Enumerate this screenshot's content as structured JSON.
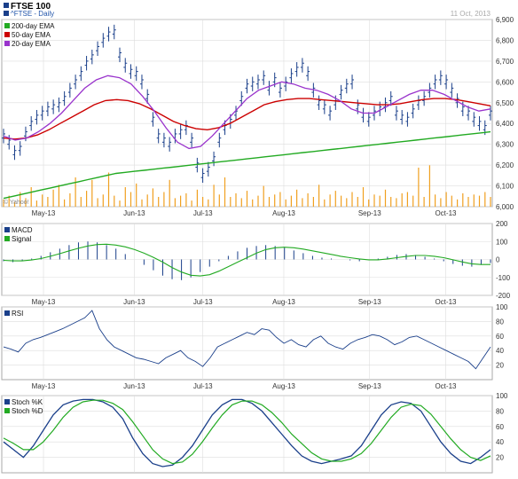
{
  "header": {
    "title": "FTSE 100",
    "subtitle": "^FTSE - Daily",
    "date": "11 Oct, 2013",
    "credit": "© Yahoo!"
  },
  "colors": {
    "price": "#1a3f8a",
    "ema200": "#22aa22",
    "ema50": "#cc0000",
    "ema20": "#9933cc",
    "volume": "#f0a020",
    "macd": "#1a3f8a",
    "signal": "#22aa22",
    "rsi": "#1a3f8a",
    "stochK": "#1a3f8a",
    "stochD": "#22aa22",
    "grid": "#dddddd",
    "border": "#aaaaaa"
  },
  "chart_data": [
    {
      "type": "line",
      "panel": "price",
      "y_ticks": [
        "6,000",
        "6,100",
        "6,200",
        "6,300",
        "6,400",
        "6,500",
        "6,600",
        "6,700",
        "6,800",
        "6,900"
      ],
      "ylim": [
        6000,
        6900
      ],
      "x_ticks": [
        "May-13",
        "Jun-13",
        "Jul-13",
        "Aug-13",
        "Sep-13",
        "Oct-13"
      ],
      "legend": [
        "200-day EMA",
        "50-day EMA",
        "20-day EMA"
      ],
      "series": [
        {
          "name": "^FTSE",
          "values": [
            6340,
            6310,
            6260,
            6280,
            6350,
            6400,
            6430,
            6450,
            6470,
            6480,
            6490,
            6520,
            6560,
            6600,
            6640,
            6690,
            6720,
            6760,
            6800,
            6830,
            6840,
            6730,
            6680,
            6650,
            6640,
            6600,
            6530,
            6420,
            6340,
            6320,
            6300,
            6340,
            6360,
            6380,
            6320,
            6200,
            6150,
            6180,
            6230,
            6320,
            6380,
            6410,
            6450,
            6520,
            6580,
            6590,
            6600,
            6620,
            6570,
            6610,
            6560,
            6590,
            6630,
            6660,
            6680,
            6640,
            6560,
            6500,
            6480,
            6450,
            6500,
            6550,
            6580,
            6600,
            6480,
            6440,
            6420,
            6450,
            6470,
            6490,
            6520,
            6450,
            6430,
            6420,
            6460,
            6500,
            6520,
            6560,
            6600,
            6620,
            6600,
            6560,
            6510,
            6470,
            6450,
            6420,
            6400,
            6380,
            6450
          ]
        },
        {
          "name": "200-day EMA",
          "values": [
            6040,
            6050,
            6060,
            6070,
            6080,
            6090,
            6100,
            6110,
            6120,
            6130,
            6140,
            6150,
            6160,
            6165,
            6170,
            6175,
            6180,
            6185,
            6190,
            6195,
            6200,
            6205,
            6210,
            6215,
            6220,
            6225,
            6230,
            6235,
            6240,
            6245,
            6250,
            6255,
            6260,
            6265,
            6270,
            6275,
            6280,
            6285,
            6290,
            6295,
            6300,
            6305,
            6310,
            6315,
            6320,
            6325,
            6330,
            6335,
            6340,
            6345,
            6350,
            6355,
            6360
          ]
        },
        {
          "name": "50-day EMA",
          "values": [
            6330,
            6325,
            6330,
            6345,
            6370,
            6400,
            6430,
            6460,
            6490,
            6510,
            6515,
            6510,
            6495,
            6470,
            6440,
            6410,
            6390,
            6375,
            6370,
            6380,
            6400,
            6430,
            6460,
            6490,
            6505,
            6515,
            6520,
            6520,
            6515,
            6510,
            6505,
            6500,
            6495,
            6490,
            6490,
            6495,
            6505,
            6515,
            6520,
            6520,
            6515,
            6505,
            6495,
            6485
          ]
        },
        {
          "name": "20-day EMA",
          "values": [
            6340,
            6320,
            6330,
            6360,
            6400,
            6450,
            6510,
            6570,
            6610,
            6630,
            6620,
            6590,
            6530,
            6460,
            6380,
            6310,
            6280,
            6290,
            6340,
            6400,
            6460,
            6520,
            6560,
            6580,
            6600,
            6590,
            6570,
            6560,
            6540,
            6510,
            6470,
            6450,
            6450,
            6480,
            6510,
            6540,
            6560,
            6560,
            6540,
            6510,
            6480,
            6460,
            6470
          ]
        }
      ],
      "volume": [
        30,
        45,
        20,
        60,
        35,
        80,
        25,
        50,
        40,
        70,
        90,
        30,
        55,
        120,
        40,
        65,
        110,
        35,
        50,
        140,
        45,
        25,
        80,
        60,
        95,
        30,
        50,
        75,
        40,
        60,
        110,
        35,
        45,
        55,
        25,
        70,
        40,
        30,
        90,
        50,
        120,
        40,
        55,
        35,
        65,
        30,
        45,
        85,
        40,
        50,
        60,
        30,
        45,
        70,
        35,
        55,
        40,
        90,
        30,
        50,
        65,
        45,
        35,
        60,
        40,
        80,
        30,
        50,
        45,
        70,
        40,
        35,
        55,
        60,
        45,
        160,
        40,
        170,
        50,
        35,
        60,
        45,
        30,
        55,
        40,
        50,
        45,
        60,
        40
      ]
    },
    {
      "type": "line",
      "panel": "macd",
      "y_ticks": [
        "-200",
        "-100",
        "0",
        "100",
        "200"
      ],
      "ylim": [
        -200,
        200
      ],
      "x_ticks": [
        "May-13",
        "Jun-13",
        "Jul-13",
        "Aug-13",
        "Sep-13",
        "Oct-13"
      ],
      "legend": [
        "MACD",
        "Signal"
      ],
      "series": [
        {
          "name": "MACD",
          "values": [
            -10,
            -15,
            -10,
            5,
            20,
            40,
            60,
            80,
            95,
            100,
            95,
            80,
            60,
            30,
            0,
            -30,
            -60,
            -90,
            -110,
            -115,
            -100,
            -70,
            -40,
            -10,
            20,
            45,
            65,
            75,
            80,
            75,
            65,
            50,
            35,
            20,
            10,
            5,
            0,
            -5,
            -10,
            -5,
            5,
            15,
            25,
            30,
            25,
            15,
            5,
            -10,
            -25,
            -35,
            -40,
            -30,
            -20
          ]
        },
        {
          "name": "Signal",
          "values": [
            -5,
            -8,
            -8,
            -3,
            5,
            18,
            32,
            48,
            62,
            75,
            83,
            85,
            80,
            70,
            55,
            35,
            12,
            -15,
            -45,
            -70,
            -88,
            -92,
            -85,
            -65,
            -40,
            -15,
            10,
            35,
            55,
            65,
            68,
            65,
            58,
            48,
            38,
            28,
            18,
            10,
            3,
            -2,
            -2,
            3,
            10,
            17,
            22,
            22,
            18,
            10,
            -2,
            -14,
            -24,
            -28,
            -28
          ]
        }
      ]
    },
    {
      "type": "line",
      "panel": "rsi",
      "y_ticks": [
        "20",
        "40",
        "60",
        "80",
        "100"
      ],
      "ylim": [
        0,
        100
      ],
      "x_ticks": [
        "May-13",
        "Jun-13",
        "Jul-13",
        "Aug-13",
        "Sep-13",
        "Oct-13"
      ],
      "legend": [
        "RSI"
      ],
      "series": [
        {
          "name": "RSI",
          "values": [
            45,
            42,
            38,
            50,
            55,
            58,
            62,
            66,
            70,
            75,
            80,
            85,
            95,
            70,
            55,
            45,
            40,
            35,
            30,
            28,
            25,
            22,
            30,
            35,
            40,
            30,
            25,
            18,
            30,
            45,
            50,
            55,
            60,
            65,
            62,
            70,
            68,
            58,
            50,
            55,
            48,
            45,
            55,
            60,
            50,
            45,
            42,
            50,
            55,
            58,
            62,
            60,
            55,
            48,
            52,
            58,
            60,
            55,
            50,
            45,
            40,
            35,
            30,
            25,
            15,
            30,
            45
          ]
        }
      ]
    },
    {
      "type": "line",
      "panel": "stoch",
      "y_ticks": [
        "20",
        "40",
        "60",
        "80",
        "100"
      ],
      "ylim": [
        0,
        100
      ],
      "x_ticks": [],
      "legend": [
        "Stoch %K",
        "Stoch %D"
      ],
      "series": [
        {
          "name": "Stoch %K",
          "values": [
            40,
            30,
            20,
            35,
            55,
            75,
            88,
            93,
            95,
            95,
            92,
            85,
            70,
            45,
            25,
            12,
            8,
            10,
            20,
            35,
            55,
            75,
            88,
            95,
            95,
            90,
            80,
            65,
            50,
            35,
            22,
            15,
            12,
            15,
            18,
            22,
            35,
            55,
            75,
            88,
            92,
            90,
            80,
            60,
            40,
            25,
            15,
            12,
            20,
            30
          ]
        },
        {
          "name": "Stoch %D",
          "values": [
            45,
            38,
            30,
            30,
            40,
            55,
            72,
            85,
            92,
            94,
            94,
            90,
            82,
            66,
            48,
            30,
            18,
            12,
            14,
            24,
            40,
            58,
            75,
            88,
            93,
            93,
            88,
            78,
            65,
            50,
            38,
            26,
            18,
            15,
            15,
            18,
            25,
            38,
            55,
            72,
            85,
            89,
            87,
            76,
            60,
            44,
            30,
            20,
            16,
            22
          ]
        }
      ]
    }
  ]
}
